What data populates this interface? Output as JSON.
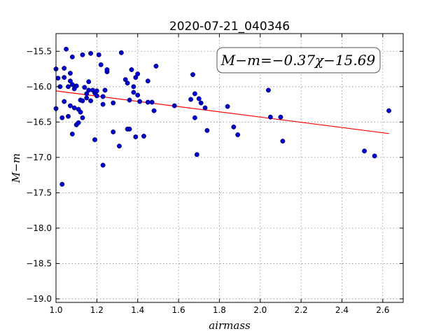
{
  "chart_data": {
    "type": "scatter",
    "title": "2020-07-21_040346",
    "xlabel": "airmass",
    "ylabel": "M−m",
    "xlim": [
      1.0,
      2.7
    ],
    "ylim": [
      -19.05,
      -15.25
    ],
    "y_inverted": true,
    "grid": true,
    "xticks": [
      "1.0",
      "1.2",
      "1.4",
      "1.6",
      "1.8",
      "2.0",
      "2.2",
      "2.4",
      "2.6"
    ],
    "yticks": [
      "−15.5",
      "−16.0",
      "−16.5",
      "−17.0",
      "−17.5",
      "−18.0",
      "−18.5",
      "−19.0"
    ],
    "annotation": "M−m=−0.37χ−15.69",
    "fit_line": {
      "slope": -0.37,
      "intercept": -15.69,
      "x_range": [
        1.0,
        2.63
      ],
      "color": "#ff0000"
    },
    "marker_color": "#0000cc",
    "points": [
      [
        1.0,
        -15.75
      ],
      [
        1.0,
        -16.31
      ],
      [
        1.01,
        -15.88
      ],
      [
        1.02,
        -16.0
      ],
      [
        1.03,
        -16.44
      ],
      [
        1.03,
        -17.38
      ],
      [
        1.04,
        -15.74
      ],
      [
        1.04,
        -15.87
      ],
      [
        1.04,
        -16.21
      ],
      [
        1.05,
        -15.47
      ],
      [
        1.06,
        -16.0
      ],
      [
        1.06,
        -16.42
      ],
      [
        1.07,
        -15.81
      ],
      [
        1.07,
        -15.92
      ],
      [
        1.07,
        -16.27
      ],
      [
        1.08,
        -15.58
      ],
      [
        1.08,
        -15.97
      ],
      [
        1.08,
        -16.67
      ],
      [
        1.09,
        -16.03
      ],
      [
        1.09,
        -16.3
      ],
      [
        1.1,
        -15.99
      ],
      [
        1.1,
        -16.54
      ],
      [
        1.11,
        -16.51
      ],
      [
        1.11,
        -16.32
      ],
      [
        1.12,
        -16.36
      ],
      [
        1.12,
        -16.19
      ],
      [
        1.13,
        -15.55
      ],
      [
        1.13,
        -16.44
      ],
      [
        1.13,
        -16.2
      ],
      [
        1.14,
        -16.01
      ],
      [
        1.15,
        -16.1
      ],
      [
        1.15,
        -16.16
      ],
      [
        1.16,
        -15.93
      ],
      [
        1.16,
        -16.05
      ],
      [
        1.17,
        -15.53
      ],
      [
        1.17,
        -16.2
      ],
      [
        1.18,
        -16.05
      ],
      [
        1.19,
        -16.09
      ],
      [
        1.19,
        -16.75
      ],
      [
        1.2,
        -16.13
      ],
      [
        1.2,
        -16.06
      ],
      [
        1.21,
        -15.55
      ],
      [
        1.22,
        -15.69
      ],
      [
        1.23,
        -16.14
      ],
      [
        1.23,
        -16.25
      ],
      [
        1.23,
        -17.11
      ],
      [
        1.24,
        -16.05
      ],
      [
        1.25,
        -15.79
      ],
      [
        1.25,
        -15.76
      ],
      [
        1.28,
        -16.64
      ],
      [
        1.28,
        -16.23
      ],
      [
        1.31,
        -16.84
      ],
      [
        1.32,
        -15.52
      ],
      [
        1.34,
        -15.9
      ],
      [
        1.35,
        -15.95
      ],
      [
        1.35,
        -16.6
      ],
      [
        1.36,
        -16.6
      ],
      [
        1.36,
        -16.19
      ],
      [
        1.37,
        -15.76
      ],
      [
        1.38,
        -16.0
      ],
      [
        1.38,
        -16.08
      ],
      [
        1.39,
        -15.87
      ],
      [
        1.39,
        -16.71
      ],
      [
        1.4,
        -15.82
      ],
      [
        1.4,
        -16.12
      ],
      [
        1.41,
        -16.21
      ],
      [
        1.43,
        -16.7
      ],
      [
        1.45,
        -16.22
      ],
      [
        1.45,
        -15.92
      ],
      [
        1.47,
        -16.22
      ],
      [
        1.48,
        -16.34
      ],
      [
        1.49,
        -15.71
      ],
      [
        1.58,
        -16.27
      ],
      [
        1.66,
        -16.18
      ],
      [
        1.67,
        -15.83
      ],
      [
        1.68,
        -16.44
      ],
      [
        1.68,
        -16.1
      ],
      [
        1.69,
        -16.96
      ],
      [
        1.7,
        -16.17
      ],
      [
        1.71,
        -16.23
      ],
      [
        1.73,
        -16.3
      ],
      [
        1.74,
        -16.62
      ],
      [
        1.84,
        -16.28
      ],
      [
        1.87,
        -16.57
      ],
      [
        1.89,
        -16.68
      ],
      [
        2.04,
        -16.05
      ],
      [
        2.05,
        -16.43
      ],
      [
        2.1,
        -16.43
      ],
      [
        2.11,
        -16.77
      ],
      [
        2.51,
        -16.91
      ],
      [
        2.56,
        -16.98
      ],
      [
        2.63,
        -16.34
      ]
    ]
  }
}
